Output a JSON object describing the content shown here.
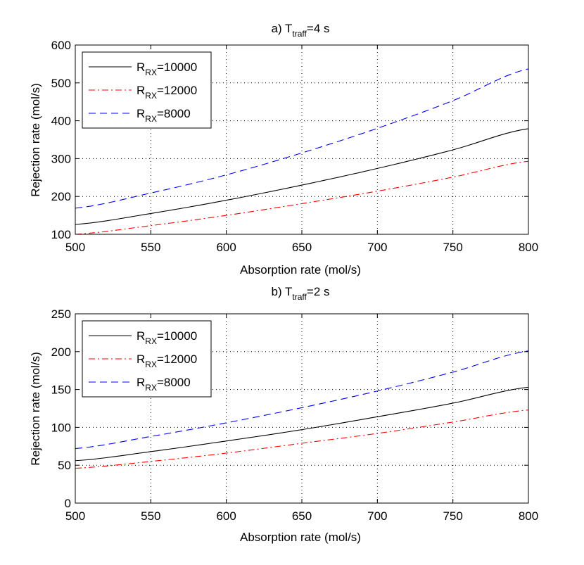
{
  "chart_data": [
    {
      "type": "line",
      "title_prefix": "a) T",
      "title_sub": "traff",
      "title_suffix": "=4 s",
      "xlabel": "Absorption rate (mol/s)",
      "ylabel": "Rejection rate (mol/s)",
      "xlim": [
        500,
        800
      ],
      "ylim": [
        100,
        600
      ],
      "xticks": [
        500,
        550,
        600,
        650,
        700,
        750,
        800
      ],
      "yticks": [
        100,
        200,
        300,
        400,
        500,
        600
      ],
      "grid": true,
      "legend_position": "top-left",
      "x": [
        500,
        550,
        600,
        650,
        700,
        750,
        800
      ],
      "series": [
        {
          "name_main": "R",
          "name_sub": "RX",
          "name_suffix": "=10000",
          "color": "#000000",
          "style": "solid",
          "values": [
            126,
            155,
            190,
            230,
            274,
            323,
            379
          ]
        },
        {
          "name_main": "R",
          "name_sub": "RX",
          "name_suffix": "=12000",
          "color": "#ff0000",
          "style": "dashdot",
          "values": [
            100,
            123,
            150,
            181,
            214,
            251,
            293
          ]
        },
        {
          "name_main": "R",
          "name_sub": "RX",
          "name_suffix": "=8000",
          "color": "#0000ff",
          "style": "dashed",
          "values": [
            169,
            209,
            257,
            315,
            380,
            453,
            537
          ]
        }
      ]
    },
    {
      "type": "line",
      "title_prefix": "b) T",
      "title_sub": "traff",
      "title_suffix": "=2 s",
      "xlabel": "Absorption rate (mol/s)",
      "ylabel": "Rejection rate (mol/s)",
      "xlim": [
        500,
        800
      ],
      "ylim": [
        0,
        250
      ],
      "xticks": [
        500,
        550,
        600,
        650,
        700,
        750,
        800
      ],
      "yticks": [
        0,
        50,
        100,
        150,
        200,
        250
      ],
      "grid": true,
      "legend_position": "top-left",
      "x": [
        500,
        550,
        600,
        650,
        700,
        750,
        800
      ],
      "series": [
        {
          "name_main": "R",
          "name_sub": "RX",
          "name_suffix": "=10000",
          "color": "#000000",
          "style": "solid",
          "values": [
            56,
            68,
            82,
            97,
            114,
            132,
            153
          ]
        },
        {
          "name_main": "R",
          "name_sub": "RX",
          "name_suffix": "=12000",
          "color": "#ff0000",
          "style": "dashdot",
          "values": [
            46,
            55,
            66,
            79,
            92,
            107,
            123
          ]
        },
        {
          "name_main": "R",
          "name_sub": "RX",
          "name_suffix": "=8000",
          "color": "#0000ff",
          "style": "dashed",
          "values": [
            72,
            88,
            106,
            126,
            148,
            173,
            201
          ]
        }
      ]
    }
  ]
}
